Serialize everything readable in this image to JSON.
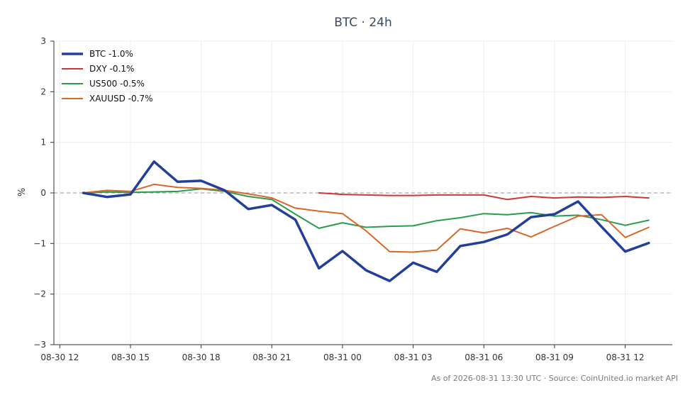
{
  "chart_data": {
    "type": "line",
    "title": "BTC · 24h",
    "xlabel": "",
    "ylabel": "%",
    "ylim": [
      -3,
      3
    ],
    "xlim_hours": [
      -0.25,
      26.0
    ],
    "x_origin": "2026-08-30 12:00 UTC",
    "x_ticks": [
      {
        "label": "08-30 12",
        "x": "2026-08-30 12:00"
      },
      {
        "label": "08-30 15",
        "x": "2026-08-30 15:00"
      },
      {
        "label": "08-30 18",
        "x": "2026-08-30 18:00"
      },
      {
        "label": "08-30 21",
        "x": "2026-08-30 21:00"
      },
      {
        "label": "08-31 00",
        "x": "2026-08-31 00:00"
      },
      {
        "label": "08-31 03",
        "x": "2026-08-31 03:00"
      },
      {
        "label": "08-31 06",
        "x": "2026-08-31 06:00"
      },
      {
        "label": "08-31 09",
        "x": "2026-08-31 09:00"
      },
      {
        "label": "08-31 12",
        "x": "2026-08-31 12:00"
      }
    ],
    "y_ticks": [
      {
        "label": "3",
        "value": 3
      },
      {
        "label": "2",
        "value": 2
      },
      {
        "label": "1",
        "value": 1
      },
      {
        "label": "0",
        "value": 0
      },
      {
        "label": "−1",
        "value": -1
      },
      {
        "label": "−2",
        "value": -2
      },
      {
        "label": "−3",
        "value": -3
      }
    ],
    "grid": true,
    "zero_line": true,
    "legend_position": "top-left",
    "series": [
      {
        "name": "BTC -1.0%",
        "color": "#22409a",
        "width": 3.5,
        "x": [
          "2026-08-30 13:00",
          "2026-08-30 14:00",
          "2026-08-30 15:00",
          "2026-08-30 16:00",
          "2026-08-30 17:00",
          "2026-08-30 18:00",
          "2026-08-30 19:00",
          "2026-08-30 20:00",
          "2026-08-30 21:00",
          "2026-08-30 22:00",
          "2026-08-30 23:00",
          "2026-08-31 00:00",
          "2026-08-31 01:00",
          "2026-08-31 02:00",
          "2026-08-31 03:00",
          "2026-08-31 04:00",
          "2026-08-31 05:00",
          "2026-08-31 06:00",
          "2026-08-31 07:00",
          "2026-08-31 08:00",
          "2026-08-31 09:00",
          "2026-08-31 10:00",
          "2026-08-31 11:00",
          "2026-08-31 12:00",
          "2026-08-31 13:00"
        ],
        "y": [
          0.0,
          -0.08,
          -0.03,
          0.62,
          0.22,
          0.24,
          0.05,
          -0.32,
          -0.24,
          -0.53,
          -1.49,
          -1.15,
          -1.53,
          -1.74,
          -1.38,
          -1.56,
          -1.05,
          -0.97,
          -0.82,
          -0.48,
          -0.42,
          -0.17,
          -0.67,
          -1.16,
          -0.99
        ]
      },
      {
        "name": "DXY -0.1%",
        "color": "#d13636",
        "width": 2,
        "x": [
          "2026-08-30 23:00",
          "2026-08-31 00:00",
          "2026-08-31 01:00",
          "2026-08-31 02:00",
          "2026-08-31 03:00",
          "2026-08-31 04:00",
          "2026-08-31 05:00",
          "2026-08-31 06:00",
          "2026-08-31 07:00",
          "2026-08-31 08:00",
          "2026-08-31 09:00",
          "2026-08-31 10:00",
          "2026-08-31 11:00",
          "2026-08-31 12:00",
          "2026-08-31 13:00"
        ],
        "y": [
          0.0,
          -0.03,
          -0.04,
          -0.05,
          -0.05,
          -0.04,
          -0.04,
          -0.04,
          -0.13,
          -0.07,
          -0.1,
          -0.08,
          -0.09,
          -0.07,
          -0.1
        ]
      },
      {
        "name": "US500 -0.5%",
        "color": "#2a9c4a",
        "width": 2,
        "x": [
          "2026-08-30 13:00",
          "2026-08-30 14:00",
          "2026-08-30 15:00",
          "2026-08-30 16:00",
          "2026-08-30 17:00",
          "2026-08-30 18:00",
          "2026-08-30 19:00",
          "2026-08-30 20:00",
          "2026-08-30 21:00",
          "2026-08-30 22:00",
          "2026-08-30 23:00",
          "2026-08-31 00:00",
          "2026-08-31 01:00",
          "2026-08-31 02:00",
          "2026-08-31 03:00",
          "2026-08-31 04:00",
          "2026-08-31 05:00",
          "2026-08-31 06:00",
          "2026-08-31 07:00",
          "2026-08-31 08:00",
          "2026-08-31 09:00",
          "2026-08-31 10:00",
          "2026-08-31 11:00",
          "2026-08-31 12:00",
          "2026-08-31 13:00"
        ],
        "y": [
          0.0,
          0.02,
          0.01,
          0.02,
          0.03,
          0.08,
          0.03,
          -0.07,
          -0.13,
          -0.42,
          -0.7,
          -0.59,
          -0.68,
          -0.66,
          -0.65,
          -0.55,
          -0.49,
          -0.41,
          -0.43,
          -0.39,
          -0.46,
          -0.44,
          -0.53,
          -0.64,
          -0.54
        ]
      },
      {
        "name": "XAUUSD -0.7%",
        "color": "#d9662a",
        "width": 2,
        "x": [
          "2026-08-30 13:00",
          "2026-08-30 14:00",
          "2026-08-30 15:00",
          "2026-08-30 16:00",
          "2026-08-30 17:00",
          "2026-08-30 18:00",
          "2026-08-30 19:00",
          "2026-08-30 20:00",
          "2026-08-30 21:00",
          "2026-08-30 22:00",
          "2026-08-30 23:00",
          "2026-08-31 00:00",
          "2026-08-31 01:00",
          "2026-08-31 02:00",
          "2026-08-31 03:00",
          "2026-08-31 04:00",
          "2026-08-31 05:00",
          "2026-08-31 06:00",
          "2026-08-31 07:00",
          "2026-08-31 08:00",
          "2026-08-31 09:00",
          "2026-08-31 10:00",
          "2026-08-31 11:00",
          "2026-08-31 12:00",
          "2026-08-31 13:00"
        ],
        "y": [
          0.0,
          0.05,
          0.03,
          0.17,
          0.11,
          0.09,
          0.05,
          -0.02,
          -0.1,
          -0.3,
          -0.36,
          -0.41,
          -0.75,
          -1.16,
          -1.17,
          -1.13,
          -0.71,
          -0.79,
          -0.7,
          -0.87,
          -0.66,
          -0.46,
          -0.43,
          -0.88,
          -0.68
        ]
      }
    ]
  },
  "footer": {
    "note": "As of 2026-08-31 13:30 UTC · Source: CoinUnited.io market API"
  },
  "colors": {
    "axis": "#333333",
    "grid": "#eeeeee",
    "zero_line": "#8a96a3",
    "title": "#3a4a5a"
  }
}
